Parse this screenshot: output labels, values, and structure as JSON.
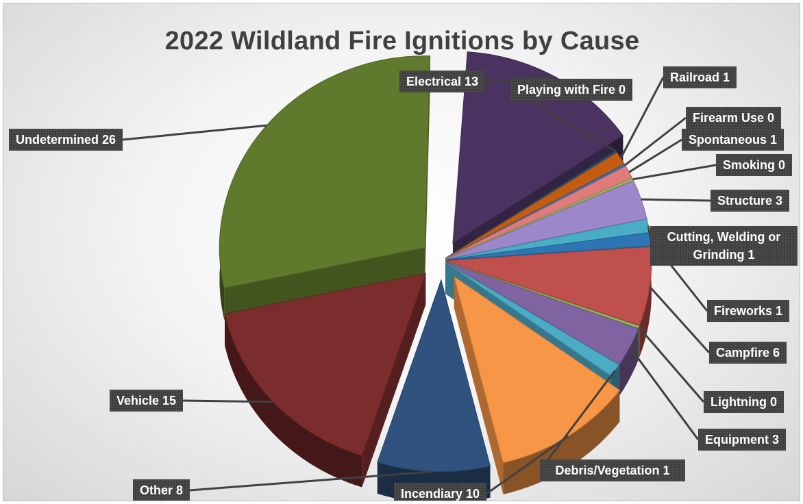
{
  "chart_data": {
    "type": "pie",
    "title": "2022 Wildland Fire Ignitions by Cause",
    "slices": [
      {
        "label": "Electrical",
        "value": 13,
        "color": "#4a3360"
      },
      {
        "label": "Playing with Fire",
        "value": 0,
        "color": "#1f4e79"
      },
      {
        "label": "Railroad",
        "value": 1,
        "color": "#c55a11"
      },
      {
        "label": "Firearm Use",
        "value": 0,
        "color": "#2e75b6"
      },
      {
        "label": "Spontaneous",
        "value": 1,
        "color": "#e07b7b"
      },
      {
        "label": "Smoking",
        "value": 0,
        "color": "#9bbb59"
      },
      {
        "label": "Structure",
        "value": 3,
        "color": "#9b87c9"
      },
      {
        "label": "Cutting, Welding or Grinding",
        "value": 1,
        "color": "#4bacc6"
      },
      {
        "label": "Fireworks",
        "value": 1,
        "color": "#2e75b6"
      },
      {
        "label": "Campfire",
        "value": 6,
        "color": "#c0504d"
      },
      {
        "label": "Lightning",
        "value": 0,
        "color": "#9bbb59"
      },
      {
        "label": "Equipment",
        "value": 3,
        "color": "#8064a2"
      },
      {
        "label": "Debris/Vegetation",
        "value": 1,
        "color": "#4bacc6"
      },
      {
        "label": "Incendiary",
        "value": 10,
        "color": "#f79646"
      },
      {
        "label": "Other",
        "value": 8,
        "color": "#2f527e"
      },
      {
        "label": "Vehicle",
        "value": 15,
        "color": "#7b2c2c"
      },
      {
        "label": "Undetermined",
        "value": 26,
        "color": "#5f7a2c"
      }
    ]
  }
}
